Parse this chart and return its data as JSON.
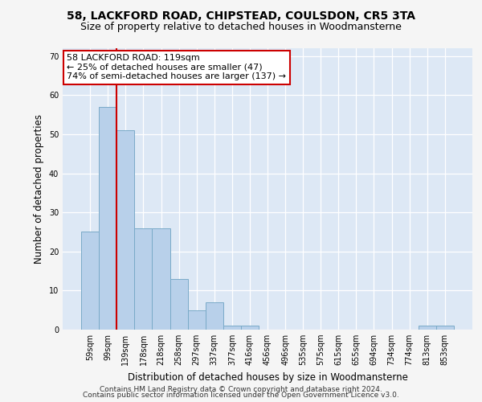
{
  "title1": "58, LACKFORD ROAD, CHIPSTEAD, COULSDON, CR5 3TA",
  "title2": "Size of property relative to detached houses in Woodmansterne",
  "xlabel": "Distribution of detached houses by size in Woodmansterne",
  "ylabel": "Number of detached properties",
  "categories": [
    "59sqm",
    "99sqm",
    "139sqm",
    "178sqm",
    "218sqm",
    "258sqm",
    "297sqm",
    "337sqm",
    "377sqm",
    "416sqm",
    "456sqm",
    "496sqm",
    "535sqm",
    "575sqm",
    "615sqm",
    "655sqm",
    "694sqm",
    "734sqm",
    "774sqm",
    "813sqm",
    "853sqm"
  ],
  "values": [
    25,
    57,
    51,
    26,
    26,
    13,
    5,
    7,
    1,
    1,
    0,
    0,
    0,
    0,
    0,
    0,
    0,
    0,
    0,
    1,
    1
  ],
  "bar_color": "#b8d0ea",
  "bar_edge_color": "#7aaac8",
  "vline_color": "#cc0000",
  "annotation_line1": "58 LACKFORD ROAD: 119sqm",
  "annotation_line2": "← 25% of detached houses are smaller (47)",
  "annotation_line3": "74% of semi-detached houses are larger (137) →",
  "annotation_box_color": "#ffffff",
  "annotation_box_edge": "#cc0000",
  "ylim": [
    0,
    72
  ],
  "yticks": [
    0,
    10,
    20,
    30,
    40,
    50,
    60,
    70
  ],
  "background_color": "#dde8f5",
  "grid_color": "#ffffff",
  "fig_bg_color": "#f5f5f5",
  "footer1": "Contains HM Land Registry data © Crown copyright and database right 2024.",
  "footer2": "Contains public sector information licensed under the Open Government Licence v3.0.",
  "title1_fontsize": 10,
  "title2_fontsize": 9,
  "xlabel_fontsize": 8.5,
  "ylabel_fontsize": 8.5,
  "tick_fontsize": 7,
  "footer_fontsize": 6.5,
  "annotation_fontsize": 8
}
